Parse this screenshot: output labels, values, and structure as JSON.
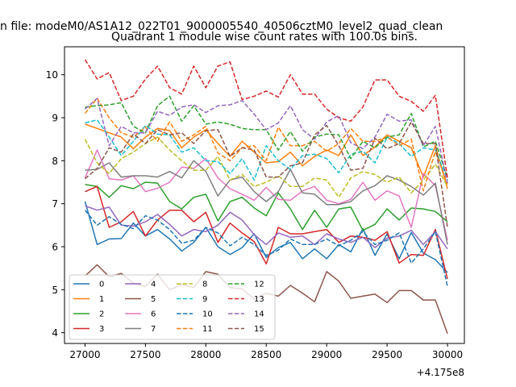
{
  "figure_title": "n file: modeM0/AS1A12_022T01_9000005540_40506cztM0_level2_quad_clean",
  "chart_data": {
    "type": "line",
    "title": "Quadrant 1 module wise count rates with 100.0s bins.",
    "xlabel": "",
    "ylabel": "",
    "x_offset_label": "+4.175e8",
    "xlim": [
      26830,
      30140
    ],
    "ylim": [
      3.75,
      10.65
    ],
    "xticks": [
      27000,
      27500,
      28000,
      28500,
      29000,
      29500,
      30000
    ],
    "yticks": [
      4,
      5,
      6,
      7,
      8,
      9,
      10
    ],
    "grid": false,
    "legend_position": "lower-left",
    "legend_columns": 4,
    "x": [
      27000,
      27100,
      27200,
      27300,
      27400,
      27500,
      27600,
      27700,
      27800,
      27900,
      28000,
      28100,
      28200,
      28300,
      28400,
      28500,
      28600,
      28700,
      28800,
      28900,
      29000,
      29100,
      29200,
      29300,
      29400,
      29500,
      29600,
      29700,
      29800,
      29900,
      30000
    ],
    "series": [
      {
        "name": "0",
        "color": "#1f77b4",
        "dash": "solid",
        "values": [
          7.05,
          6.05,
          6.18,
          6.19,
          6.55,
          6.25,
          6.4,
          6.18,
          5.9,
          6.1,
          6.45,
          6.0,
          5.82,
          5.98,
          6.3,
          5.75,
          5.98,
          6.1,
          5.72,
          5.95,
          5.72,
          6.05,
          5.88,
          6.42,
          5.8,
          6.3,
          5.72,
          6.33,
          5.85,
          5.7,
          5.4
        ]
      },
      {
        "name": "1",
        "color": "#ff7f0e",
        "dash": "solid",
        "values": [
          8.85,
          8.75,
          8.65,
          8.55,
          8.28,
          8.55,
          8.75,
          8.7,
          8.3,
          8.55,
          8.72,
          8.4,
          8.1,
          8.45,
          8.2,
          7.95,
          7.98,
          8.2,
          7.88,
          8.1,
          8.25,
          8.12,
          8.6,
          8.12,
          8.32,
          8.6,
          8.45,
          8.3,
          7.62,
          8.35,
          7.35
        ]
      },
      {
        "name": "2",
        "color": "#2ca02c",
        "dash": "solid",
        "values": [
          7.45,
          7.4,
          7.15,
          7.42,
          7.35,
          7.5,
          7.48,
          7.05,
          6.88,
          7.15,
          7.22,
          6.6,
          7.05,
          7.15,
          6.9,
          6.72,
          7.25,
          6.88,
          6.4,
          6.85,
          6.45,
          6.88,
          6.92,
          6.38,
          6.52,
          6.88,
          6.62,
          6.9,
          6.88,
          6.82,
          6.58
        ]
      },
      {
        "name": "3",
        "color": "#d62728",
        "dash": "solid",
        "values": [
          7.28,
          7.4,
          6.45,
          6.58,
          6.82,
          6.25,
          6.62,
          6.85,
          6.85,
          6.58,
          6.8,
          6.1,
          6.55,
          6.32,
          6.12,
          5.6,
          6.45,
          6.3,
          6.3,
          6.35,
          6.4,
          6.1,
          6.25,
          6.22,
          6.15,
          6.35,
          5.62,
          5.82,
          5.8,
          6.4,
          5.25
        ]
      },
      {
        "name": "4",
        "color": "#9467bd",
        "dash": "solid",
        "values": [
          6.95,
          6.85,
          6.92,
          6.5,
          6.48,
          6.58,
          6.75,
          6.52,
          6.25,
          6.4,
          6.35,
          6.5,
          6.8,
          6.62,
          6.28,
          6.05,
          6.32,
          6.22,
          6.25,
          6.05,
          6.3,
          6.18,
          6.1,
          6.22,
          5.98,
          6.2,
          6.25,
          6.38,
          6.05,
          6.35,
          5.95
        ]
      },
      {
        "name": "5",
        "color": "#8c564b",
        "dash": "solid",
        "values": [
          5.32,
          5.58,
          5.3,
          5.38,
          5.15,
          5.08,
          5.36,
          5.0,
          5.12,
          5.05,
          5.42,
          5.36,
          5.05,
          5.02,
          4.78,
          4.92,
          4.85,
          5.1,
          4.92,
          4.72,
          5.42,
          5.2,
          4.8,
          4.85,
          4.9,
          4.7,
          4.98,
          4.98,
          4.76,
          4.76,
          3.98
        ]
      },
      {
        "name": "6",
        "color": "#e377c2",
        "dash": "solid",
        "values": [
          7.6,
          8.25,
          7.58,
          7.55,
          7.65,
          7.28,
          7.36,
          7.5,
          7.85,
          7.82,
          8.05,
          7.6,
          7.35,
          7.22,
          7.08,
          7.38,
          7.1,
          7.08,
          7.3,
          7.4,
          7.08,
          7.0,
          7.1,
          7.5,
          7.08,
          7.3,
          7.18,
          6.45,
          7.7,
          7.42,
          6.15
        ]
      },
      {
        "name": "7",
        "color": "#7f7f7f",
        "dash": "solid",
        "values": [
          7.78,
          7.8,
          7.95,
          7.62,
          7.65,
          7.65,
          7.62,
          7.75,
          7.6,
          8.0,
          7.75,
          7.18,
          7.55,
          7.62,
          7.28,
          7.05,
          7.28,
          7.8,
          7.25,
          7.22,
          6.98,
          6.98,
          7.05,
          7.3,
          7.42,
          7.65,
          7.55,
          7.4,
          7.2,
          7.48,
          6.05
        ]
      },
      {
        "name": "8",
        "color": "#bcbd22",
        "dash": "dashed",
        "values": [
          8.5,
          7.95,
          7.7,
          8.05,
          8.2,
          8.4,
          8.55,
          8.25,
          8.0,
          7.78,
          7.78,
          8.1,
          7.55,
          7.68,
          7.4,
          7.5,
          7.65,
          7.4,
          7.4,
          7.6,
          7.55,
          7.15,
          7.6,
          7.75,
          7.68,
          7.5,
          7.62,
          7.25,
          7.55,
          7.92,
          7.4
        ]
      },
      {
        "name": "9",
        "color": "#17becf",
        "dash": "dashed",
        "values": [
          8.88,
          8.95,
          8.55,
          8.12,
          8.45,
          8.82,
          8.62,
          8.6,
          8.2,
          8.3,
          8.0,
          7.98,
          7.7,
          8.05,
          7.55,
          8.35,
          8.0,
          7.8,
          8.12,
          8.15,
          8.05,
          7.72,
          8.15,
          8.22,
          7.95,
          8.55,
          8.4,
          8.1,
          8.3,
          8.25,
          7.55
        ]
      },
      {
        "name": "10",
        "color": "#1f77b4",
        "dash": "dashed",
        "values": [
          6.85,
          6.5,
          6.7,
          6.52,
          6.42,
          6.72,
          6.62,
          6.4,
          6.08,
          6.15,
          6.45,
          6.32,
          6.02,
          6.22,
          6.05,
          5.8,
          5.92,
          6.18,
          6.05,
          6.05,
          6.18,
          6.02,
          6.15,
          6.35,
          6.05,
          6.15,
          6.32,
          5.62,
          5.95,
          6.35,
          5.08
        ]
      },
      {
        "name": "11",
        "color": "#ff7f0e",
        "dash": "dashed",
        "values": [
          9.1,
          9.45,
          9.0,
          8.65,
          8.55,
          8.78,
          8.45,
          8.9,
          8.45,
          8.6,
          8.8,
          8.18,
          8.0,
          8.3,
          8.35,
          8.0,
          8.78,
          8.35,
          8.35,
          8.45,
          8.22,
          8.4,
          8.75,
          8.45,
          8.45,
          8.55,
          8.35,
          8.5,
          7.3,
          8.22,
          7.45
        ]
      },
      {
        "name": "12",
        "color": "#2ca02c",
        "dash": "dashed",
        "values": [
          9.25,
          9.28,
          9.3,
          9.35,
          8.8,
          8.65,
          9.28,
          9.5,
          8.92,
          9.28,
          8.85,
          8.9,
          8.85,
          8.75,
          8.72,
          8.72,
          8.25,
          8.68,
          8.22,
          8.55,
          8.62,
          8.6,
          8.05,
          8.45,
          8.3,
          8.55,
          8.6,
          9.1,
          8.32,
          8.45,
          7.6
        ]
      },
      {
        "name": "13",
        "color": "#d62728",
        "dash": "dashed",
        "values": [
          10.35,
          9.9,
          10.05,
          9.4,
          9.5,
          9.9,
          10.2,
          9.7,
          9.55,
          10.2,
          9.7,
          10.2,
          10.3,
          9.42,
          9.5,
          9.62,
          9.48,
          10.0,
          9.55,
          9.55,
          9.2,
          9.0,
          8.92,
          9.25,
          9.88,
          9.88,
          9.5,
          9.38,
          9.15,
          9.52,
          7.6
        ]
      },
      {
        "name": "14",
        "color": "#9467bd",
        "dash": "dashed",
        "values": [
          9.2,
          9.45,
          8.35,
          8.8,
          8.65,
          8.65,
          9.15,
          9.05,
          9.25,
          9.3,
          9.12,
          9.28,
          9.3,
          9.4,
          9.08,
          8.72,
          8.88,
          9.28,
          8.72,
          8.5,
          8.9,
          9.05,
          8.42,
          8.28,
          8.55,
          9.08,
          8.92,
          8.95,
          8.35,
          8.8,
          7.48
        ]
      },
      {
        "name": "15",
        "color": "#8c564b",
        "dash": "dashed",
        "values": [
          7.58,
          7.82,
          8.3,
          8.2,
          8.62,
          8.4,
          8.72,
          8.6,
          8.65,
          8.4,
          8.7,
          8.72,
          8.1,
          8.3,
          8.25,
          7.62,
          7.62,
          7.88,
          7.95,
          8.6,
          8.82,
          8.35,
          7.78,
          7.82,
          8.52,
          8.28,
          8.4,
          8.9,
          8.4,
          8.4,
          6.45
        ]
      }
    ]
  }
}
